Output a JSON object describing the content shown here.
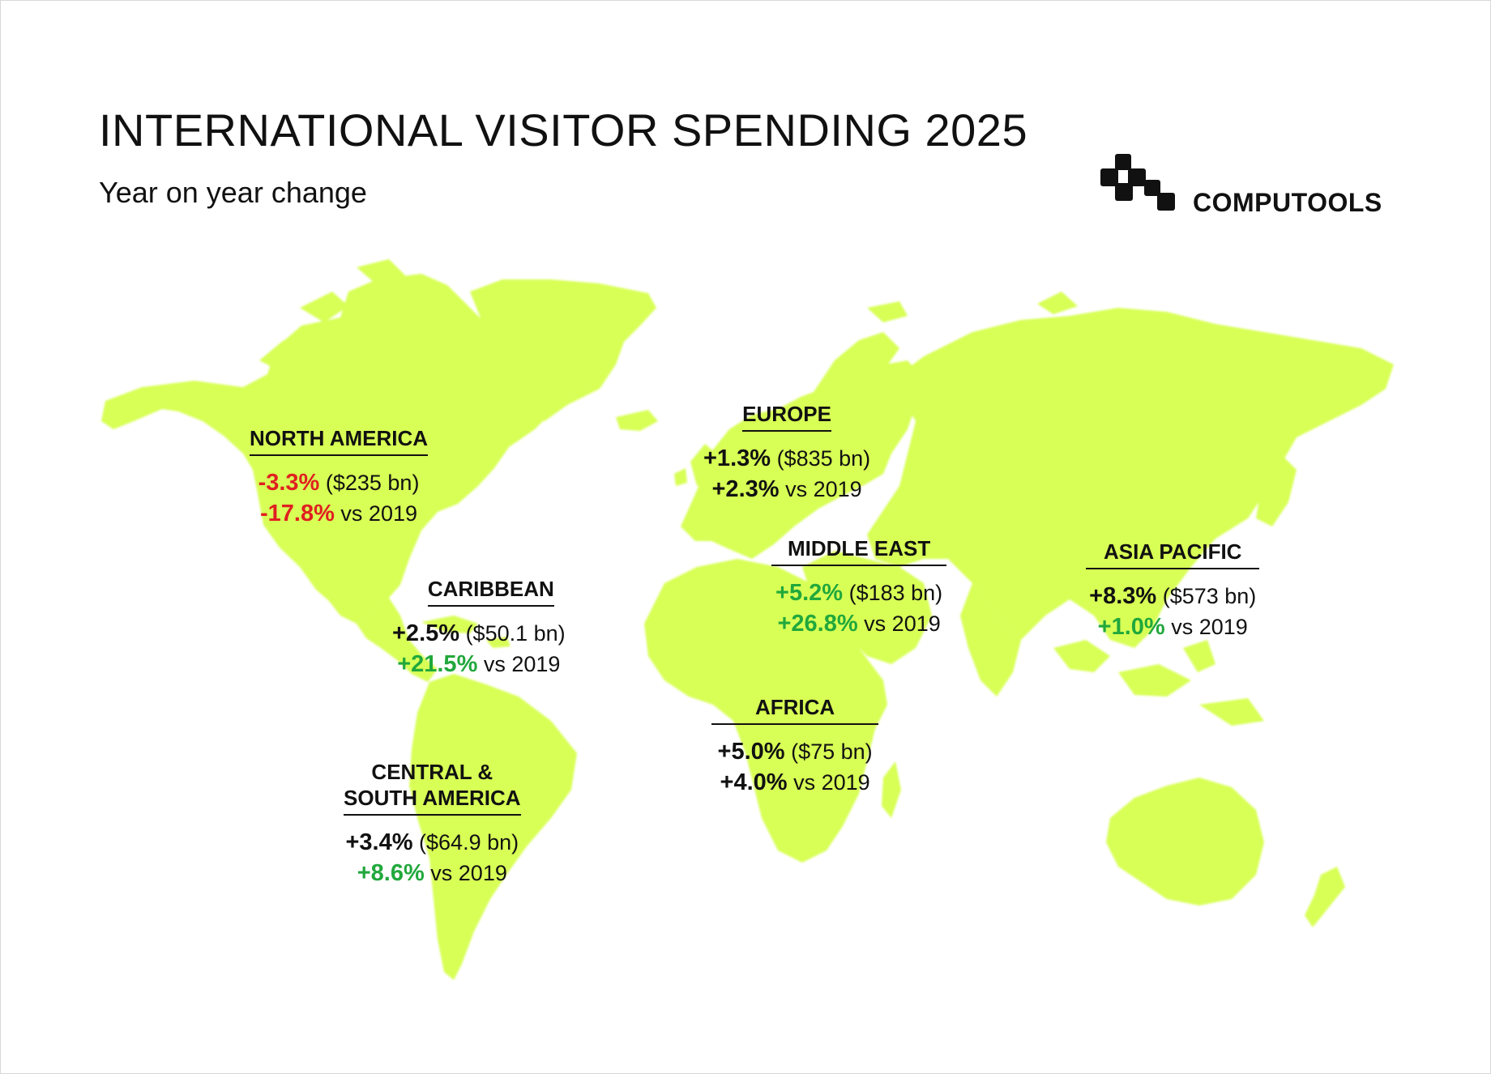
{
  "title": "INTERNATIONAL VISITOR SPENDING 2025",
  "subtitle": "Year on year change",
  "brand": {
    "name": "COMPUTOOLS",
    "logo_icon": "computools-logo-icon"
  },
  "colors": {
    "land": "#d8ff55",
    "negative": "#e02020",
    "positive": "#21a83c",
    "neutral": "#111111"
  },
  "regions": {
    "north_america": {
      "name": "NORTH AMERICA",
      "yoy": "-3.3%",
      "spend": "($235 bn)",
      "vs2019": "-17.8%",
      "vs_label": "vs 2019",
      "yoy_tone": "negative",
      "vs_tone": "negative"
    },
    "europe": {
      "name": "EUROPE",
      "yoy": "+1.3%",
      "spend": "($835 bn)",
      "vs2019": "+2.3%",
      "vs_label": "vs 2019",
      "yoy_tone": "neutral",
      "vs_tone": "neutral"
    },
    "caribbean": {
      "name": "CARIBBEAN",
      "yoy": "+2.5%",
      "spend": "($50.1 bn)",
      "vs2019": "+21.5%",
      "vs_label": "vs 2019",
      "yoy_tone": "neutral",
      "vs_tone": "positive"
    },
    "middle_east": {
      "name": "MIDDLE EAST",
      "yoy": "+5.2%",
      "spend": "($183 bn)",
      "vs2019": "+26.8%",
      "vs_label": "vs 2019",
      "yoy_tone": "positive",
      "vs_tone": "positive"
    },
    "asia_pacific": {
      "name": "ASIA PACIFIC",
      "yoy": "+8.3%",
      "spend": "($573 bn)",
      "vs2019": "+1.0%",
      "vs_label": "vs 2019",
      "yoy_tone": "neutral",
      "vs_tone": "positive"
    },
    "africa": {
      "name": "AFRICA",
      "yoy": "+5.0%",
      "spend": "($75 bn)",
      "vs2019": "+4.0%",
      "vs_label": "vs 2019",
      "yoy_tone": "neutral",
      "vs_tone": "neutral"
    },
    "central_south_america": {
      "name_line1": "CENTRAL &",
      "name_line2": "SOUTH AMERICA",
      "yoy": "+3.4%",
      "spend": "($64.9 bn)",
      "vs2019": "+8.6%",
      "vs_label": "vs 2019",
      "yoy_tone": "neutral",
      "vs_tone": "positive"
    }
  }
}
